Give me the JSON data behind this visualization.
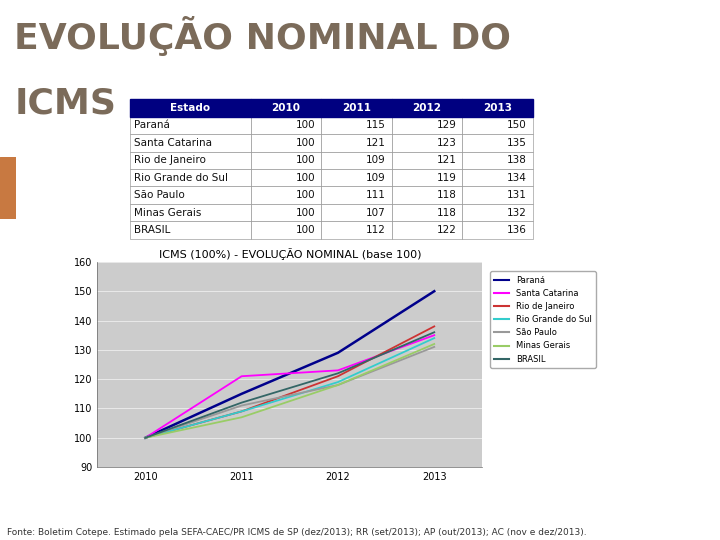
{
  "title_line1": "EVOLUÇÃO NOMINAL DO",
  "title_line2": "ICMS",
  "chart_title": "ICMS (100%) - EVOLUÇÃO NOMINAL (base 100)",
  "footnote": "Fonte: Boletim Cotepe. Estimado pela SEFA-CAEC/PR ICMS de SP (dez/2013); RR (set/2013); AP (out/2013); AC (nov e dez/2013).",
  "table_headers": [
    "Estado",
    "2010",
    "2011",
    "2012",
    "2013"
  ],
  "table_data": [
    [
      "Paraná",
      100,
      115,
      129,
      150
    ],
    [
      "Santa Catarina",
      100,
      121,
      123,
      135
    ],
    [
      "Rio de Janeiro",
      100,
      109,
      121,
      138
    ],
    [
      "Rio Grande do Sul",
      100,
      109,
      119,
      134
    ],
    [
      "São Paulo",
      100,
      111,
      118,
      131
    ],
    [
      "Minas Gerais",
      100,
      107,
      118,
      132
    ],
    [
      "BRASIL",
      100,
      112,
      122,
      136
    ]
  ],
  "years": [
    2010,
    2011,
    2012,
    2013
  ],
  "series": [
    {
      "label": "Paraná",
      "color": "#00008B",
      "values": [
        100,
        115,
        129,
        150
      ],
      "lw": 1.8
    },
    {
      "label": "Santa Catarina",
      "color": "#FF00FF",
      "values": [
        100,
        121,
        123,
        135
      ],
      "lw": 1.3
    },
    {
      "label": "Rio de Janeiro",
      "color": "#CC3333",
      "values": [
        100,
        109,
        121,
        138
      ],
      "lw": 1.3
    },
    {
      "label": "Rio Grande do Sul",
      "color": "#33CCCC",
      "values": [
        100,
        109,
        119,
        134
      ],
      "lw": 1.3
    },
    {
      "label": "São Paulo",
      "color": "#999999",
      "values": [
        100,
        111,
        118,
        131
      ],
      "lw": 1.3
    },
    {
      "label": "Minas Gerais",
      "color": "#99CC66",
      "values": [
        100,
        107,
        118,
        132
      ],
      "lw": 1.3
    },
    {
      "label": "BRASIL",
      "color": "#336666",
      "values": [
        100,
        112,
        122,
        136
      ],
      "lw": 1.3
    }
  ],
  "ylim": [
    90,
    160
  ],
  "yticks": [
    90,
    100,
    110,
    120,
    130,
    140,
    150,
    160
  ],
  "bg_color": "#FFFFFF",
  "plot_bg": "#CCCCCC",
  "header_bg": "#000080",
  "header_text": "#FFFFFF",
  "table_border": "#333333",
  "accent_color": "#C87941",
  "accent_bg": "#B8C8D8",
  "title_color": "#7B6B5A",
  "title_fontsize": 26,
  "table_fontsize": 7.5,
  "chart_title_fontsize": 8,
  "footnote_fontsize": 6.5
}
